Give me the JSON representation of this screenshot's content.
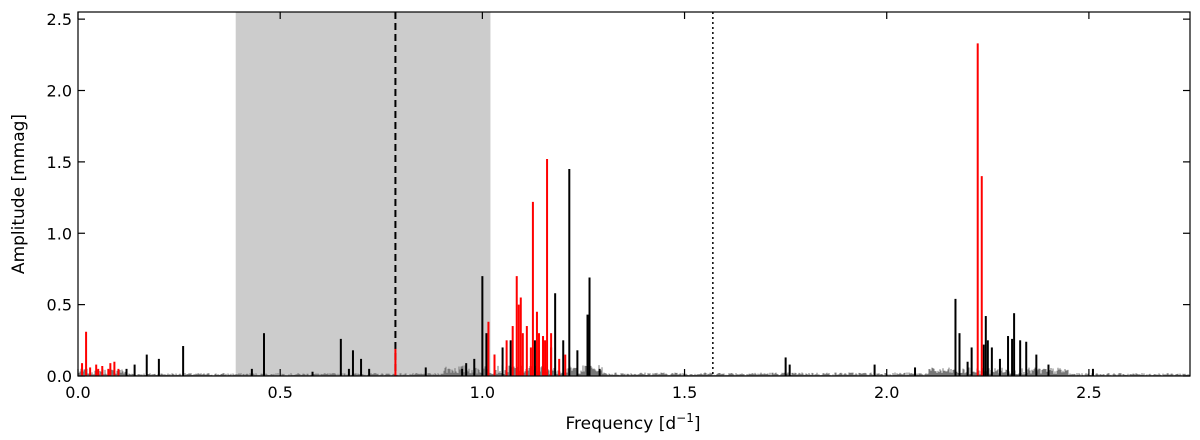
{
  "chart_data": {
    "type": "line",
    "title": "",
    "xlabel": "Frequency [d",
    "xlabel_sup": "−1",
    "xlabel_end": "]",
    "ylabel": "Amplitude [mmag]",
    "xlim": [
      0.0,
      2.75
    ],
    "ylim": [
      0.0,
      2.55
    ],
    "x_ticks": [
      0.0,
      0.5,
      1.0,
      1.5,
      2.0,
      2.5
    ],
    "x_tick_labels": [
      "0.0",
      "0.5",
      "1.0",
      "1.5",
      "2.0",
      "2.5"
    ],
    "y_ticks": [
      0.0,
      0.5,
      1.0,
      1.5,
      2.0,
      2.5
    ],
    "y_tick_labels": [
      "0.0",
      "0.5",
      "1.0",
      "1.5",
      "2.0",
      "2.5"
    ],
    "grid": false,
    "shaded_region": {
      "x_start": 0.39,
      "x_end": 1.02,
      "color": "#cccccc"
    },
    "vertical_lines": [
      {
        "x": 0.785,
        "style": "dashed",
        "color": "#000000"
      },
      {
        "x": 1.57,
        "style": "dotted",
        "color": "#000000"
      }
    ],
    "colors": {
      "black_series": "#000000",
      "red_series": "#ff0000",
      "noise": "#777777"
    },
    "series": [
      {
        "color": "#000000",
        "x": [
          0.12,
          0.14,
          0.17,
          0.2,
          0.26,
          0.43,
          0.46,
          0.58,
          0.65,
          0.67,
          0.68,
          0.7,
          0.72,
          0.86,
          0.95,
          0.96,
          0.98,
          1.0,
          1.01,
          1.03,
          1.05,
          1.07,
          1.13,
          1.14,
          1.17,
          1.18,
          1.2,
          1.215,
          1.235,
          1.26,
          1.265,
          1.29,
          1.75,
          1.76,
          1.97,
          2.07,
          2.17,
          2.18,
          2.2,
          2.21,
          2.24,
          2.245,
          2.25,
          2.26,
          2.28,
          2.3,
          2.31,
          2.315,
          2.33,
          2.345,
          2.37,
          2.4,
          2.51
        ],
        "y": [
          0.05,
          0.08,
          0.15,
          0.12,
          0.21,
          0.05,
          0.3,
          0.03,
          0.26,
          0.05,
          0.18,
          0.12,
          0.05,
          0.06,
          0.05,
          0.09,
          0.12,
          0.7,
          0.3,
          0.15,
          0.2,
          0.25,
          0.25,
          0.18,
          0.2,
          0.58,
          0.25,
          1.45,
          0.18,
          0.43,
          0.69,
          0.05,
          0.13,
          0.08,
          0.08,
          0.06,
          0.54,
          0.3,
          0.1,
          0.2,
          0.22,
          0.42,
          0.25,
          0.2,
          0.12,
          0.28,
          0.26,
          0.44,
          0.25,
          0.24,
          0.15,
          0.08,
          0.05
        ]
      },
      {
        "color": "#ff0000",
        "x": [
          0.01,
          0.02,
          0.03,
          0.045,
          0.05,
          0.06,
          0.075,
          0.08,
          0.09,
          0.1,
          0.785,
          1.015,
          1.03,
          1.06,
          1.075,
          1.085,
          1.09,
          1.095,
          1.1,
          1.11,
          1.12,
          1.125,
          1.135,
          1.14,
          1.15,
          1.155,
          1.16,
          1.17,
          1.19,
          1.205,
          2.225,
          2.235
        ],
        "y": [
          0.09,
          0.31,
          0.06,
          0.08,
          0.05,
          0.07,
          0.05,
          0.09,
          0.1,
          0.05,
          0.19,
          0.38,
          0.15,
          0.25,
          0.35,
          0.7,
          0.5,
          0.55,
          0.3,
          0.35,
          0.2,
          1.22,
          0.45,
          0.3,
          0.28,
          0.25,
          1.52,
          0.3,
          0.12,
          0.15,
          2.33,
          1.4
        ]
      }
    ]
  }
}
